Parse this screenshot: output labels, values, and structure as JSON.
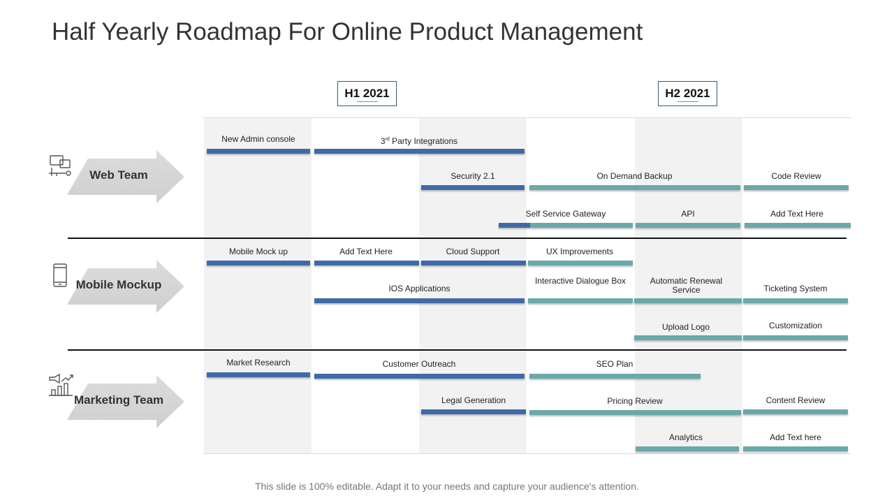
{
  "title": "Half Yearly Roadmap For Online Product Management",
  "halves": [
    {
      "label": "H1 2021"
    },
    {
      "label": "H2 2021"
    }
  ],
  "teams": [
    {
      "name": "Web Team",
      "icon": "computer-network-icon"
    },
    {
      "name": "Mobile Mockup",
      "icon": "mobile-phone-icon"
    },
    {
      "name": "Marketing Team",
      "icon": "megaphone-chart-icon"
    }
  ],
  "tasks": {
    "new_admin_console": "New Admin console",
    "third_party_prefix": "3",
    "third_party_sup": "rd",
    "third_party_suffix": " Party Integrations",
    "security": "Security 2.1",
    "on_demand_backup": "On Demand Backup",
    "code_review": "Code Review",
    "self_service_gateway": "Self Service Gateway",
    "api": "API",
    "web_add_text": "Add Text Here",
    "mobile_mock_up": "Mobile Mock up",
    "mobile_add_text": "Add Text Here",
    "cloud_support": "Cloud Support",
    "ux_improvements": "UX Improvements",
    "ios_applications": "IOS Applications",
    "interactive_dialogue_box": "Interactive Dialogue Box",
    "automatic_renewal_service": "Automatic Renewal Service",
    "ticketing_system": "Ticketing System",
    "upload_logo": "Upload Logo",
    "customization": "Customization",
    "market_research": "Market Research",
    "customer_outreach": "Customer Outreach",
    "seo_plan": "SEO Plan",
    "legal_generation": "Legal Generation",
    "pricing_review": "Pricing Review",
    "content_review": "Content Review",
    "analytics": "Analytics",
    "marketing_add_text": "Add Text here"
  },
  "colors": {
    "h1_bar": "#3f6aa7",
    "h2_bar": "#6aa9a9",
    "column_shade": "#f2f2f2"
  },
  "footer": "This slide is 100% editable. Adapt it to your needs and capture your audience's attention."
}
